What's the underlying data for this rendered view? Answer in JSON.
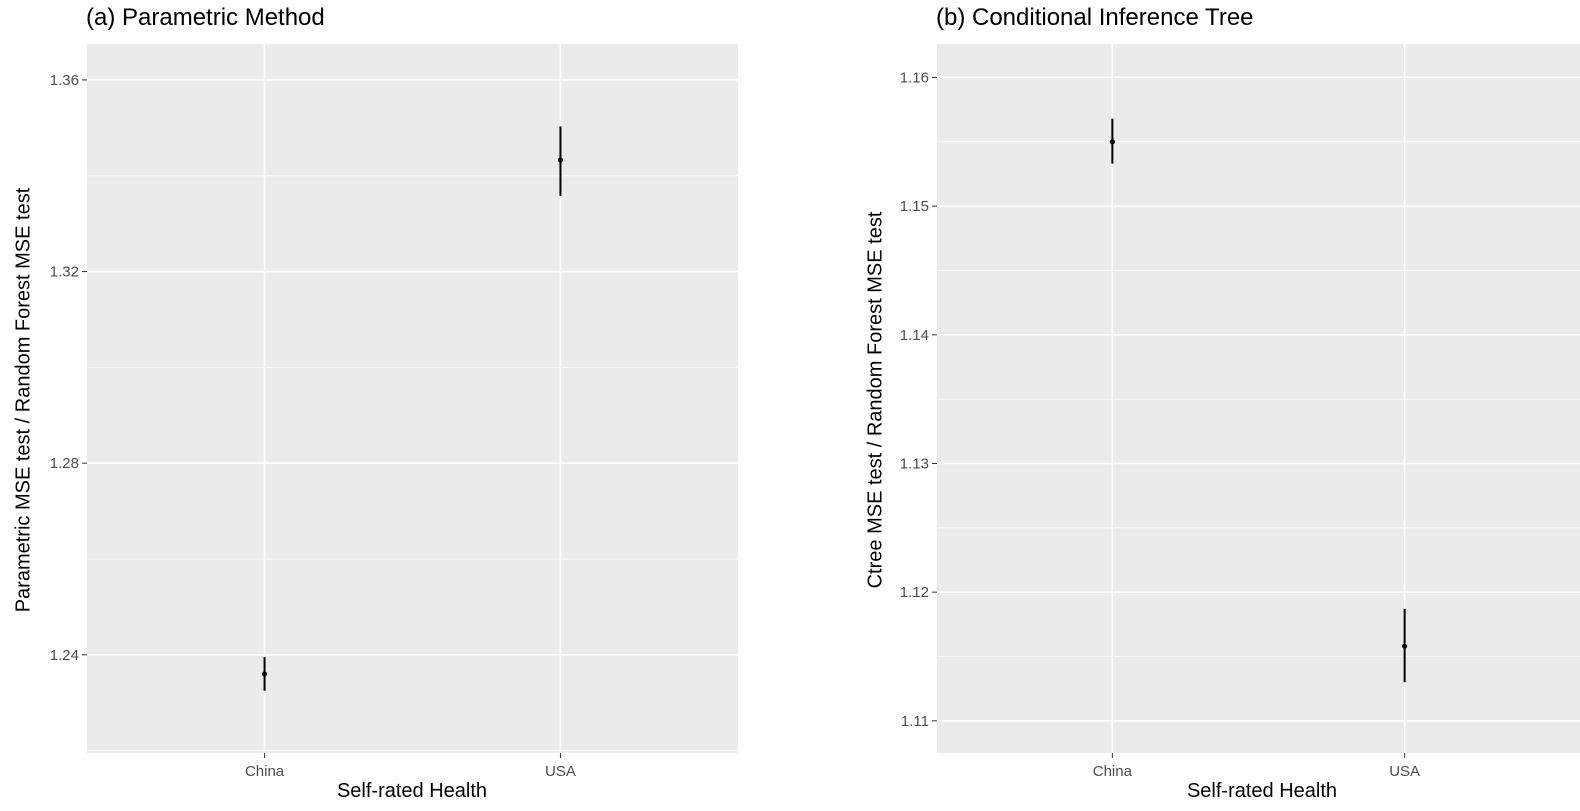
{
  "chart_data": [
    {
      "type": "scatter",
      "title": "(a) Parametric Method",
      "xlabel": "Self-rated Health",
      "ylabel": "Parametric MSE test / Random Forest MSE test",
      "categories": [
        "China",
        "USA"
      ],
      "values": [
        1.236,
        1.3433
      ],
      "error_low": [
        1.2325,
        1.3358
      ],
      "error_high": [
        1.2395,
        1.3503
      ],
      "yticks": [
        1.24,
        1.28,
        1.32,
        1.36
      ],
      "ytick_labels": [
        "1.24",
        "1.28",
        "1.32",
        "1.36"
      ],
      "ylim": [
        1.2195,
        1.3675
      ],
      "grid": true,
      "colors": {
        "panel_bg": "#ebebeb",
        "grid": "#ffffff",
        "mark": "#000000",
        "tick_text": "#4d4d4d"
      }
    },
    {
      "type": "scatter",
      "title": "(b) Conditional Inference Tree",
      "xlabel": "Self-rated Health",
      "ylabel": "Ctree MSE test / Random Forest MSE test",
      "categories": [
        "China",
        "USA"
      ],
      "values": [
        1.155,
        1.1158
      ],
      "error_low": [
        1.1533,
        1.113
      ],
      "error_high": [
        1.1568,
        1.1187
      ],
      "yticks": [
        1.11,
        1.12,
        1.13,
        1.14,
        1.15,
        1.16
      ],
      "ytick_labels": [
        "1.11",
        "1.12",
        "1.13",
        "1.14",
        "1.15",
        "1.16"
      ],
      "ylim": [
        1.1075,
        1.1626
      ],
      "grid": true,
      "colors": {
        "panel_bg": "#ebebeb",
        "grid": "#ffffff",
        "mark": "#000000",
        "tick_text": "#4d4d4d"
      }
    }
  ]
}
